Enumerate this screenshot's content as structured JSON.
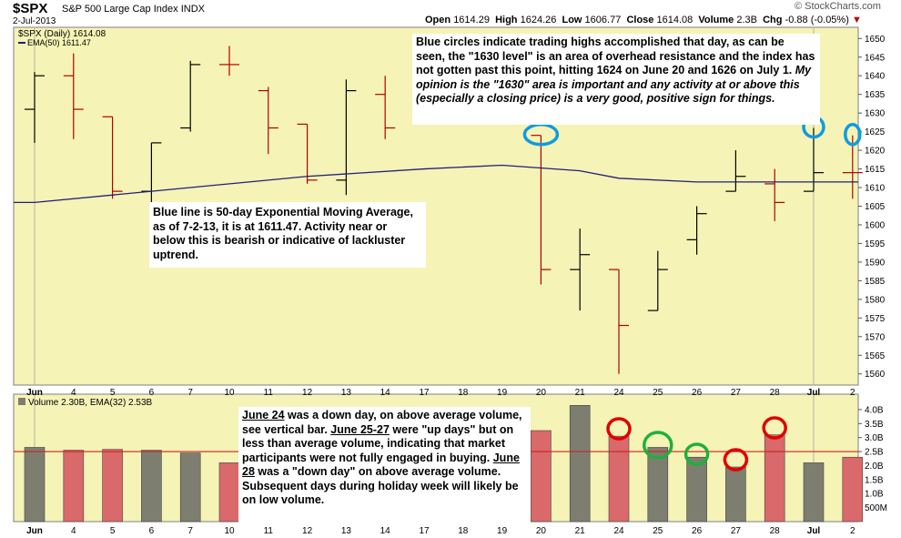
{
  "header": {
    "symbol": "$SPX",
    "name": "S&P 500 Large Cap Index",
    "exchange": "INDX",
    "date": "2-Jul-2013",
    "brand": "© StockCharts.com",
    "quote": {
      "open_label": "Open",
      "open": "1614.29",
      "high_label": "High",
      "high": "1624.26",
      "low_label": "Low",
      "low": "1606.77",
      "close_label": "Close",
      "close": "1614.08",
      "volume_label": "Volume",
      "volume": "2.3B",
      "chg_label": "Chg",
      "chg": "-0.88 (-0.05%)"
    }
  },
  "price_panel": {
    "legend_line1": "$SPX (Daily) 1614.08",
    "legend_line2": "EMA(50) 1611.47"
  },
  "volume_panel": {
    "legend": "Volume 2.30B, EMA(32) 2.53B"
  },
  "annotations": {
    "note1_p1": "Blue circles indicate trading highs accomplished that day, as can be seen, the \"1630 level\" is an area of overhead resistance and the index has not gotten past this point, hitting 1624 on June 20 and 1626 on July 1.",
    "note1_p2": "My opinion is the \"1630\" area is important and any activity at or above this (especially a closing price) is a very good, positive sign for things.",
    "note2": "Blue line is 50-day Exponential Moving Average, as of 7-2-13, it is at 1611.47.   Activity near or below this is bearish or indicative of lackluster uptrend.",
    "note3_a": "June 24",
    "note3_b": " was a down day, on above average volume, see vertical bar.  ",
    "note3_c": "June 25-27",
    "note3_d": " were \"up days\" but on less than average volume, indicating that market participants were not fully engaged in buying.  ",
    "note3_e": "June 28",
    "note3_f": " was a \"down day\" on above average volume.  Subsequent days during holiday week will likely be on low volume."
  },
  "colors": {
    "panel_bg": "#f5f3b6",
    "up": "#000000",
    "down": "#b00000",
    "ema_price": "#1f1f7a",
    "ema_volume": "#d02020",
    "vol_up": "#7e7e70",
    "vol_down": "#d9696a",
    "circle_blue": "#0f9bde",
    "circle_red": "#e00000",
    "circle_green": "#1fb03a"
  },
  "chart_data": [
    {
      "type": "ohlc",
      "title": "$SPX S&P 500 Large Cap Index INDX",
      "categories": [
        "Jun",
        "4",
        "5",
        "6",
        "7",
        "10",
        "11",
        "12",
        "13",
        "14",
        "17",
        "18",
        "19",
        "20",
        "21",
        "24",
        "25",
        "26",
        "27",
        "28",
        "Jul",
        "2"
      ],
      "ohlc": [
        {
          "x": "Jun",
          "open": 1631,
          "high": 1641,
          "low": 1622,
          "close": 1640,
          "dir": "up"
        },
        {
          "x": "4",
          "open": 1640,
          "high": 1646,
          "low": 1623,
          "close": 1631,
          "dir": "down"
        },
        {
          "x": "5",
          "open": 1629,
          "high": 1629,
          "low": 1607,
          "close": 1609,
          "dir": "down"
        },
        {
          "x": "6",
          "open": 1609,
          "high": 1622,
          "low": 1598,
          "close": 1622,
          "dir": "up"
        },
        {
          "x": "7",
          "open": 1626,
          "high": 1644,
          "low": 1625,
          "close": 1643,
          "dir": "up"
        },
        {
          "x": "10",
          "open": 1643,
          "high": 1648,
          "low": 1640,
          "close": 1643,
          "dir": "down"
        },
        {
          "x": "11",
          "open": 1636,
          "high": 1637,
          "low": 1619,
          "close": 1626,
          "dir": "down"
        },
        {
          "x": "12",
          "open": 1627,
          "high": 1627,
          "low": 1611,
          "close": 1612,
          "dir": "down"
        },
        {
          "x": "13",
          "open": 1612,
          "high": 1639,
          "low": 1608,
          "close": 1636,
          "dir": "up"
        },
        {
          "x": "14",
          "open": 1635,
          "high": 1640,
          "low": 1623,
          "close": 1626,
          "dir": "down"
        },
        {
          "x": "20",
          "open": 1624,
          "high": 1624,
          "low": 1584,
          "close": 1588,
          "dir": "down"
        },
        {
          "x": "21",
          "open": 1588,
          "high": 1599,
          "low": 1577,
          "close": 1592,
          "dir": "up"
        },
        {
          "x": "24",
          "open": 1588,
          "high": 1588,
          "low": 1560,
          "close": 1573,
          "dir": "down"
        },
        {
          "x": "25",
          "open": 1577,
          "high": 1593,
          "low": 1577,
          "close": 1588,
          "dir": "up"
        },
        {
          "x": "26",
          "open": 1596,
          "high": 1605,
          "low": 1592,
          "close": 1603,
          "dir": "up"
        },
        {
          "x": "27",
          "open": 1609,
          "high": 1620,
          "low": 1609,
          "close": 1613,
          "dir": "up"
        },
        {
          "x": "28",
          "open": 1611,
          "high": 1615,
          "low": 1601,
          "close": 1606,
          "dir": "down"
        },
        {
          "x": "Jul",
          "open": 1609,
          "high": 1626,
          "low": 1609,
          "close": 1614,
          "dir": "up"
        },
        {
          "x": "2",
          "open": 1614,
          "high": 1624,
          "low": 1607,
          "close": 1614,
          "dir": "down"
        }
      ],
      "ema50": [
        {
          "x": "Jun",
          "y": 1606
        },
        {
          "x": "6",
          "y": 1609
        },
        {
          "x": "12",
          "y": 1613
        },
        {
          "x": "17",
          "y": 1615
        },
        {
          "x": "19",
          "y": 1616
        },
        {
          "x": "21",
          "y": 1614.5
        },
        {
          "x": "24",
          "y": 1612.5
        },
        {
          "x": "26",
          "y": 1611.5
        },
        {
          "x": "2",
          "y": 1611.5
        }
      ],
      "ylim": [
        1557,
        1653
      ],
      "yticks": [
        1560,
        1565,
        1570,
        1575,
        1580,
        1585,
        1590,
        1595,
        1600,
        1605,
        1610,
        1615,
        1620,
        1625,
        1630,
        1635,
        1640,
        1645,
        1650
      ],
      "highlight_circles": [
        {
          "x": "20",
          "y": 1624
        },
        {
          "x": "Jul",
          "y": 1626
        },
        {
          "x": "2",
          "y": 1624
        }
      ]
    },
    {
      "type": "bar",
      "title": "Volume 2.30B, EMA(32) 2.53B",
      "categories": [
        "Jun",
        "4",
        "5",
        "6",
        "7",
        "10",
        "11",
        "12",
        "13",
        "14",
        "17",
        "18",
        "19",
        "20",
        "21",
        "24",
        "25",
        "26",
        "27",
        "28",
        "Jul",
        "2"
      ],
      "values_B": [
        2.65,
        2.55,
        2.58,
        2.55,
        2.45,
        2.1,
        null,
        null,
        null,
        null,
        null,
        null,
        null,
        3.25,
        4.15,
        3.05,
        2.65,
        2.3,
        1.95,
        3.1,
        2.1,
        2.3
      ],
      "dir": [
        "up",
        "down",
        "down",
        "up",
        "up",
        "down",
        "",
        "",
        "",
        "",
        "",
        "",
        "",
        "down",
        "up",
        "down",
        "up",
        "up",
        "up",
        "down",
        "up",
        "down"
      ],
      "ema32": 2.5,
      "yticks_labels": [
        "500M",
        "1.0B",
        "1.5B",
        "2.0B",
        "2.5B",
        "3.0B",
        "3.5B",
        "4.0B"
      ],
      "yticks": [
        0.5,
        1.0,
        1.5,
        2.0,
        2.5,
        3.0,
        3.5,
        4.0
      ],
      "highlight_circles": [
        {
          "x": "24",
          "color": "red"
        },
        {
          "x": "25",
          "color": "green"
        },
        {
          "x": "26",
          "color": "green"
        },
        {
          "x": "27",
          "color": "red"
        },
        {
          "x": "28",
          "color": "red"
        }
      ]
    }
  ]
}
